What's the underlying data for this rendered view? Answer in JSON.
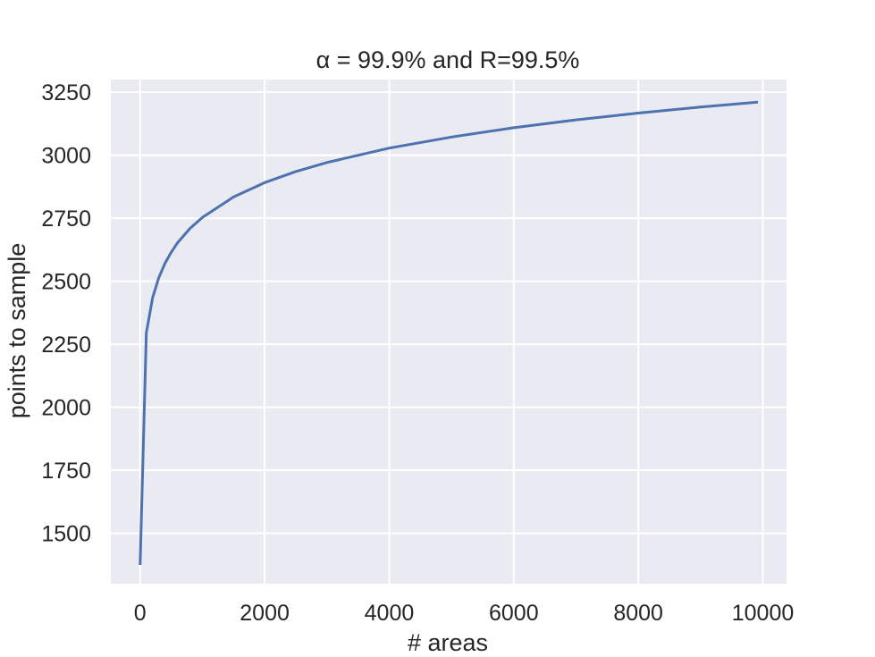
{
  "chart_data": {
    "type": "line",
    "title": "α = 99.9% and R=99.5%",
    "xlabel": "# areas",
    "ylabel": "points to sample",
    "xlim": [
      -470,
      10380
    ],
    "ylim": [
      1300,
      3300
    ],
    "grid": true,
    "colors": {
      "background": "#eaeaf2",
      "grid": "#ffffff",
      "line": "#4c72b0"
    },
    "xticks": [
      {
        "value": 0,
        "label": "0"
      },
      {
        "value": 2000,
        "label": "2000"
      },
      {
        "value": 4000,
        "label": "4000"
      },
      {
        "value": 6000,
        "label": "6000"
      },
      {
        "value": 8000,
        "label": "8000"
      },
      {
        "value": 10000,
        "label": "10000"
      }
    ],
    "yticks": [
      {
        "value": 1500,
        "label": "1500"
      },
      {
        "value": 1750,
        "label": "1750"
      },
      {
        "value": 2000,
        "label": "2000"
      },
      {
        "value": 2250,
        "label": "2250"
      },
      {
        "value": 2500,
        "label": "2500"
      },
      {
        "value": 2750,
        "label": "2750"
      },
      {
        "value": 3000,
        "label": "3000"
      },
      {
        "value": 3250,
        "label": "3250"
      }
    ],
    "series": [
      {
        "x": [
          1,
          100,
          200,
          300,
          400,
          500,
          600,
          800,
          1000,
          1500,
          2000,
          2500,
          3000,
          4000,
          5000,
          6000,
          7000,
          8000,
          9000,
          9900
        ],
        "y": [
          1380,
          2295,
          2433,
          2514,
          2571,
          2615,
          2652,
          2709,
          2753,
          2834,
          2891,
          2935,
          2971,
          3028,
          3072,
          3109,
          3140,
          3167,
          3191,
          3210
        ]
      }
    ]
  }
}
